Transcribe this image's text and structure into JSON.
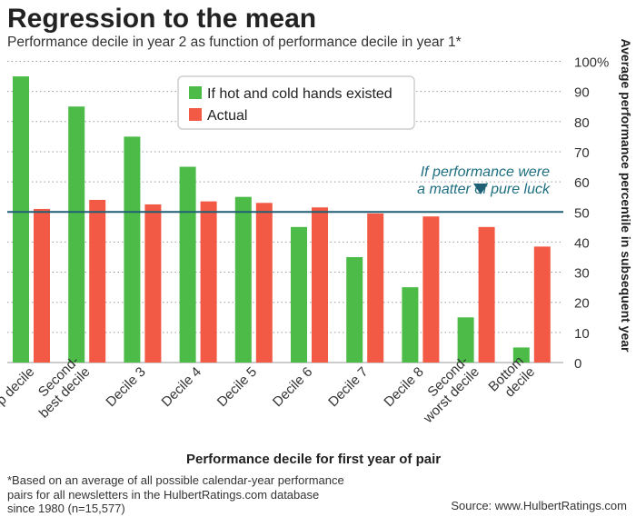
{
  "title": "Regression to the mean",
  "subtitle": "Performance decile in year 2 as function of performance decile in year 1*",
  "footnote": "*Based on an average of all possible calendar-year performance\npairs for all newsletters in the HulbertRatings.com database\nsince 1980 (n=15,577)",
  "source": "Source: www.HulbertRatings.com",
  "colors": {
    "hot_cold": "#4cbb47",
    "actual": "#f25a46",
    "luck_line": "#1f5f75",
    "annotation": "#1f6f80"
  },
  "chart_data": {
    "type": "bar",
    "xlabel": "Performance decile for first year of pair",
    "ylabel": "Average performance percentile in subsequent year",
    "ylim": [
      0,
      100
    ],
    "yticks": [
      "0",
      "10",
      "20",
      "30",
      "40",
      "50",
      "60",
      "70",
      "80",
      "90",
      "100%"
    ],
    "grid": "horizontal dotted",
    "legend_position": "top-center",
    "categories": [
      "Top decile",
      "Second-best decile",
      "Decile 3",
      "Decile 4",
      "Decile 5",
      "Decile 6",
      "Decile 7",
      "Decile 8",
      "Second-worst decile",
      "Bottom decile"
    ],
    "category_lines": [
      [
        "Top decile"
      ],
      [
        "Second-",
        "best decile"
      ],
      [
        "Decile 3"
      ],
      [
        "Decile 4"
      ],
      [
        "Decile 5"
      ],
      [
        "Decile 6"
      ],
      [
        "Decile 7"
      ],
      [
        "Decile 8"
      ],
      [
        "Second-",
        "worst decile"
      ],
      [
        "Bottom",
        "decile"
      ]
    ],
    "series": [
      {
        "name": "If hot and cold hands existed",
        "values": [
          95,
          85,
          75,
          65,
          55,
          45,
          35,
          25,
          15,
          5
        ]
      },
      {
        "name": "Actual",
        "values": [
          51,
          54,
          52.5,
          53.5,
          53,
          51.5,
          49.5,
          48.5,
          45,
          38.5
        ]
      }
    ],
    "reference_line": {
      "value": 50
    },
    "annotation": [
      "If performance were",
      "a matter of pure luck"
    ]
  }
}
